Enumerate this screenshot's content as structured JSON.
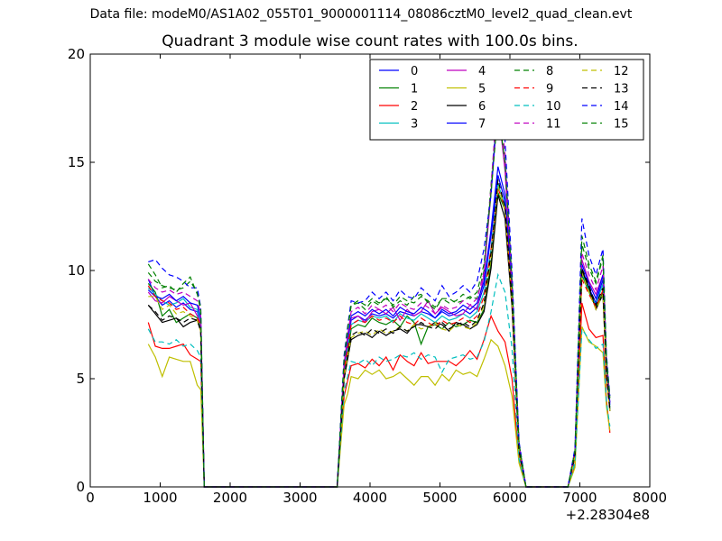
{
  "suptitle": "Data file: modeM0/AS1A02_055T01_9000001114_08086cztM0_level2_quad_clean.evt",
  "chart_data": {
    "type": "line",
    "title": "Quadrant 3 module wise count rates with 100.0s bins.",
    "xlabel": "",
    "ylabel": "",
    "x_offset_label": "+2.28304e8",
    "xlim": [
      0,
      8000
    ],
    "ylim": [
      0,
      20
    ],
    "xticks": [
      "0",
      "1000",
      "2000",
      "3000",
      "4000",
      "5000",
      "6000",
      "7000",
      "8000"
    ],
    "yticks": [
      "0",
      "5",
      "10",
      "15",
      "20"
    ],
    "grid": false,
    "legend_position": "top-right",
    "legend_columns": 4,
    "x": [
      830,
      930,
      1030,
      1130,
      1230,
      1330,
      1430,
      1530,
      1580,
      1630,
      1730,
      1830,
      2830,
      3430,
      3530,
      3630,
      3680,
      3730,
      3830,
      3930,
      4030,
      4130,
      4230,
      4330,
      4430,
      4530,
      4630,
      4730,
      4830,
      4930,
      5030,
      5130,
      5230,
      5330,
      5430,
      5530,
      5630,
      5730,
      5830,
      5930,
      6030,
      6130,
      6230,
      6330,
      6830,
      6930,
      7030,
      7130,
      7230,
      7330,
      7380,
      7430
    ],
    "series": [
      {
        "name": "0",
        "color": "#0000ff",
        "dash": false,
        "values": [
          9.6,
          8.8,
          8.4,
          8.6,
          8.3,
          8.5,
          8.2,
          8.1,
          7.5,
          0,
          0,
          0,
          0,
          0,
          0,
          5.5,
          6.6,
          7.7,
          7.9,
          7.7,
          8.0,
          7.9,
          8.0,
          7.8,
          8.1,
          8.0,
          7.9,
          8.1,
          8.0,
          7.8,
          8.1,
          7.9,
          8.0,
          8.2,
          8.0,
          8.3,
          9.3,
          11.6,
          14.4,
          13.2,
          9.0,
          1.8,
          0,
          0,
          0,
          1.5,
          10.1,
          9.2,
          8.5,
          9.6,
          5.4,
          3.8
        ]
      },
      {
        "name": "1",
        "color": "#008000",
        "dash": false,
        "values": [
          9.4,
          9.0,
          7.9,
          8.2,
          7.6,
          7.8,
          8.0,
          7.8,
          7.3,
          0,
          0,
          0,
          0,
          0,
          0,
          5.2,
          6.1,
          7.3,
          7.5,
          7.4,
          7.8,
          7.6,
          7.5,
          7.7,
          7.4,
          7.9,
          7.6,
          6.6,
          7.4,
          7.5,
          7.3,
          7.6,
          7.4,
          7.5,
          7.7,
          7.6,
          8.2,
          10.4,
          13.6,
          12.8,
          8.6,
          1.7,
          0,
          0,
          0,
          1.4,
          9.8,
          9.0,
          8.3,
          9.0,
          5.2,
          3.6
        ]
      },
      {
        "name": "2",
        "color": "#ff0000",
        "dash": false,
        "values": [
          7.6,
          6.5,
          6.4,
          6.4,
          6.5,
          6.6,
          6.1,
          5.9,
          5.8,
          0,
          0,
          0,
          0,
          0,
          0,
          4.2,
          4.9,
          5.6,
          5.7,
          5.5,
          5.9,
          5.6,
          6.0,
          5.4,
          6.1,
          5.8,
          5.6,
          6.2,
          5.7,
          5.8,
          5.8,
          5.8,
          5.6,
          5.9,
          6.3,
          5.9,
          6.8,
          7.9,
          7.2,
          6.7,
          5.0,
          1.2,
          0,
          0,
          0,
          1.0,
          8.5,
          7.3,
          6.9,
          7.0,
          4.0,
          2.5
        ]
      },
      {
        "name": "3",
        "color": "#00bfbf",
        "dash": false,
        "values": [
          9.2,
          8.9,
          8.6,
          8.4,
          8.5,
          8.7,
          8.3,
          8.2,
          7.6,
          0,
          0,
          0,
          0,
          0,
          0,
          5.4,
          6.5,
          7.5,
          7.7,
          7.6,
          7.9,
          7.8,
          7.9,
          7.6,
          8.0,
          7.8,
          7.7,
          8.0,
          7.8,
          7.6,
          7.9,
          7.7,
          7.8,
          8.0,
          7.8,
          8.1,
          9.0,
          11.0,
          14.0,
          13.0,
          8.8,
          1.8,
          0,
          0,
          0,
          1.5,
          9.9,
          9.1,
          8.4,
          9.4,
          5.3,
          3.7
        ]
      },
      {
        "name": "4",
        "color": "#bf00bf",
        "dash": false,
        "values": [
          9.0,
          8.6,
          8.5,
          8.8,
          8.6,
          8.4,
          8.5,
          7.9,
          7.6,
          0,
          0,
          0,
          0,
          0,
          0,
          5.5,
          6.7,
          7.8,
          7.9,
          7.6,
          8.1,
          8.2,
          8.0,
          8.3,
          7.7,
          8.2,
          7.9,
          8.1,
          8.6,
          8.0,
          8.3,
          8.1,
          7.9,
          8.0,
          8.4,
          8.2,
          9.8,
          13.6,
          17.6,
          14.6,
          9.2,
          1.9,
          0,
          0,
          0,
          1.6,
          10.5,
          9.5,
          8.9,
          9.8,
          5.6,
          3.9
        ]
      },
      {
        "name": "5",
        "color": "#bfbf00",
        "dash": false,
        "values": [
          6.6,
          6.0,
          5.1,
          6.0,
          5.9,
          5.8,
          5.8,
          4.7,
          4.5,
          0,
          0,
          0,
          0,
          0,
          0,
          3.8,
          4.3,
          5.1,
          5.0,
          5.4,
          5.2,
          5.4,
          5.0,
          5.1,
          5.3,
          5.0,
          4.7,
          5.1,
          5.1,
          4.7,
          5.2,
          4.9,
          5.4,
          5.2,
          5.3,
          5.1,
          5.9,
          6.8,
          6.5,
          5.6,
          4.2,
          1.1,
          0,
          0,
          0,
          0.9,
          7.4,
          6.7,
          6.5,
          6.2,
          3.7,
          2.6
        ]
      },
      {
        "name": "6",
        "color": "#000000",
        "dash": false,
        "values": [
          8.4,
          8.0,
          7.6,
          7.7,
          7.8,
          7.4,
          7.6,
          7.7,
          7.2,
          0,
          0,
          0,
          0,
          0,
          0,
          5.0,
          5.9,
          6.8,
          7.0,
          7.1,
          6.9,
          7.2,
          7.0,
          7.2,
          7.3,
          7.1,
          7.5,
          7.5,
          7.4,
          7.6,
          7.5,
          7.2,
          7.6,
          7.5,
          7.3,
          7.5,
          8.1,
          10.1,
          13.5,
          12.4,
          8.3,
          1.6,
          0,
          0,
          0,
          1.4,
          10.0,
          9.2,
          8.2,
          8.9,
          5.1,
          3.5
        ]
      },
      {
        "name": "7",
        "color": "#0000ff",
        "dash": false,
        "values": [
          9.1,
          8.8,
          8.7,
          8.9,
          8.6,
          8.8,
          8.5,
          8.4,
          7.8,
          0,
          0,
          0,
          0,
          0,
          0,
          5.6,
          6.8,
          7.9,
          8.1,
          7.9,
          8.2,
          8.0,
          8.2,
          7.9,
          8.3,
          8.1,
          8.0,
          8.3,
          8.1,
          7.8,
          8.2,
          8.0,
          8.1,
          8.4,
          8.2,
          8.5,
          9.5,
          11.9,
          14.8,
          13.5,
          9.1,
          1.9,
          0,
          0,
          0,
          1.6,
          10.3,
          9.4,
          8.7,
          9.8,
          5.5,
          3.9
        ]
      },
      {
        "name": "8",
        "color": "#008000",
        "dash": true,
        "values": [
          9.9,
          9.5,
          9.3,
          9.2,
          9.1,
          9.2,
          9.5,
          9.0,
          8.1,
          0,
          0,
          0,
          0,
          0,
          0,
          5.9,
          7.2,
          8.4,
          8.5,
          8.2,
          8.6,
          8.4,
          8.8,
          8.3,
          8.6,
          8.4,
          8.8,
          8.9,
          8.5,
          8.2,
          8.7,
          8.7,
          8.5,
          8.6,
          8.8,
          8.7,
          10.0,
          14.0,
          17.8,
          15.2,
          9.6,
          2.0,
          0,
          0,
          0,
          1.7,
          11.2,
          10.1,
          9.4,
          10.6,
          5.9,
          4.1
        ]
      },
      {
        "name": "9",
        "color": "#ff0000",
        "dash": true,
        "values": [
          9.3,
          8.8,
          8.6,
          8.5,
          8.2,
          8.3,
          8.0,
          7.8,
          7.5,
          0,
          0,
          0,
          0,
          0,
          0,
          5.4,
          6.4,
          7.5,
          7.7,
          7.6,
          7.9,
          7.7,
          7.8,
          7.6,
          7.9,
          7.6,
          7.5,
          7.8,
          7.6,
          7.4,
          7.7,
          7.5,
          7.6,
          7.8,
          7.6,
          7.9,
          8.8,
          11.0,
          13.8,
          12.9,
          8.7,
          1.8,
          0,
          0,
          0,
          1.5,
          9.6,
          8.9,
          8.3,
          9.1,
          5.2,
          3.6
        ]
      },
      {
        "name": "10",
        "color": "#00bfbf",
        "dash": true,
        "values": [
          7.3,
          6.7,
          6.7,
          6.6,
          6.8,
          6.5,
          6.6,
          6.3,
          6.0,
          0,
          0,
          0,
          0,
          0,
          0,
          4.4,
          5.1,
          5.8,
          5.7,
          5.9,
          5.6,
          6.0,
          5.8,
          5.9,
          6.1,
          6.0,
          6.2,
          5.9,
          6.1,
          6.0,
          5.3,
          5.9,
          6.0,
          6.1,
          5.9,
          6.0,
          6.7,
          8.1,
          9.8,
          9.0,
          6.4,
          1.3,
          0,
          0,
          0,
          1.1,
          7.3,
          6.8,
          6.4,
          6.6,
          3.9,
          2.8
        ]
      },
      {
        "name": "11",
        "color": "#bf00bf",
        "dash": true,
        "values": [
          9.6,
          9.2,
          9.0,
          9.1,
          8.9,
          9.0,
          8.8,
          8.6,
          8.0,
          0,
          0,
          0,
          0,
          0,
          0,
          5.7,
          7.0,
          8.1,
          8.3,
          8.0,
          8.4,
          8.2,
          8.4,
          8.1,
          8.5,
          8.3,
          8.2,
          8.5,
          8.3,
          8.0,
          8.4,
          8.2,
          8.3,
          8.6,
          8.4,
          8.7,
          9.9,
          13.9,
          18.4,
          15.4,
          9.4,
          2.0,
          0,
          0,
          0,
          1.7,
          10.8,
          9.8,
          9.1,
          10.2,
          5.7,
          4.0
        ]
      },
      {
        "name": "12",
        "color": "#bfbf00",
        "dash": true,
        "values": [
          8.8,
          8.8,
          8.2,
          8.4,
          8.0,
          8.1,
          7.9,
          7.7,
          7.2,
          0,
          0,
          0,
          0,
          0,
          0,
          5.1,
          6.0,
          6.9,
          7.1,
          7.2,
          7.0,
          7.3,
          7.1,
          7.2,
          7.4,
          7.2,
          7.5,
          7.3,
          7.4,
          7.6,
          7.3,
          7.2,
          7.5,
          7.4,
          7.3,
          7.6,
          8.4,
          10.6,
          13.9,
          12.8,
          8.5,
          1.7,
          0,
          0,
          0,
          1.4,
          9.9,
          9.0,
          8.2,
          8.9,
          5.0,
          3.5
        ]
      },
      {
        "name": "13",
        "color": "#000000",
        "dash": true,
        "values": [
          8.4,
          8.1,
          7.7,
          7.9,
          7.8,
          7.6,
          7.8,
          7.7,
          7.2,
          0,
          0,
          0,
          0,
          0,
          0,
          5.0,
          6.0,
          7.0,
          7.2,
          7.0,
          7.3,
          7.1,
          7.3,
          7.1,
          7.4,
          7.2,
          7.4,
          7.6,
          7.4,
          7.3,
          7.6,
          7.3,
          7.5,
          7.6,
          7.4,
          7.7,
          8.5,
          10.8,
          14.2,
          12.9,
          8.6,
          1.7,
          0,
          0,
          0,
          1.5,
          10.1,
          9.3,
          8.4,
          9.2,
          5.2,
          3.6
        ]
      },
      {
        "name": "14",
        "color": "#0000ff",
        "dash": true,
        "values": [
          10.4,
          10.5,
          10.1,
          9.8,
          9.7,
          9.5,
          9.2,
          9.2,
          8.3,
          0,
          0,
          0,
          0,
          0,
          0,
          6.1,
          7.4,
          8.6,
          8.5,
          8.6,
          9.0,
          8.7,
          9.0,
          8.6,
          9.1,
          8.8,
          8.7,
          9.2,
          8.9,
          8.6,
          9.3,
          8.8,
          9.0,
          9.3,
          9.0,
          9.5,
          11.0,
          13.5,
          18.0,
          16.0,
          10.0,
          2.1,
          0,
          0,
          0,
          1.8,
          12.4,
          10.7,
          9.8,
          11.0,
          6.1,
          4.2
        ]
      },
      {
        "name": "15",
        "color": "#008000",
        "dash": true,
        "values": [
          10.3,
          9.8,
          9.2,
          9.3,
          9.0,
          9.4,
          9.7,
          8.9,
          8.3,
          0,
          0,
          0,
          0,
          0,
          0,
          5.9,
          7.3,
          8.4,
          8.6,
          8.4,
          8.7,
          8.5,
          8.7,
          8.4,
          8.8,
          8.6,
          8.5,
          8.8,
          8.6,
          8.3,
          8.7,
          8.5,
          8.6,
          8.9,
          8.7,
          9.0,
          10.3,
          13.6,
          17.4,
          15.0,
          9.5,
          2.0,
          0,
          0,
          0,
          1.7,
          11.6,
          10.3,
          9.5,
          10.7,
          5.9,
          4.1
        ]
      }
    ]
  }
}
